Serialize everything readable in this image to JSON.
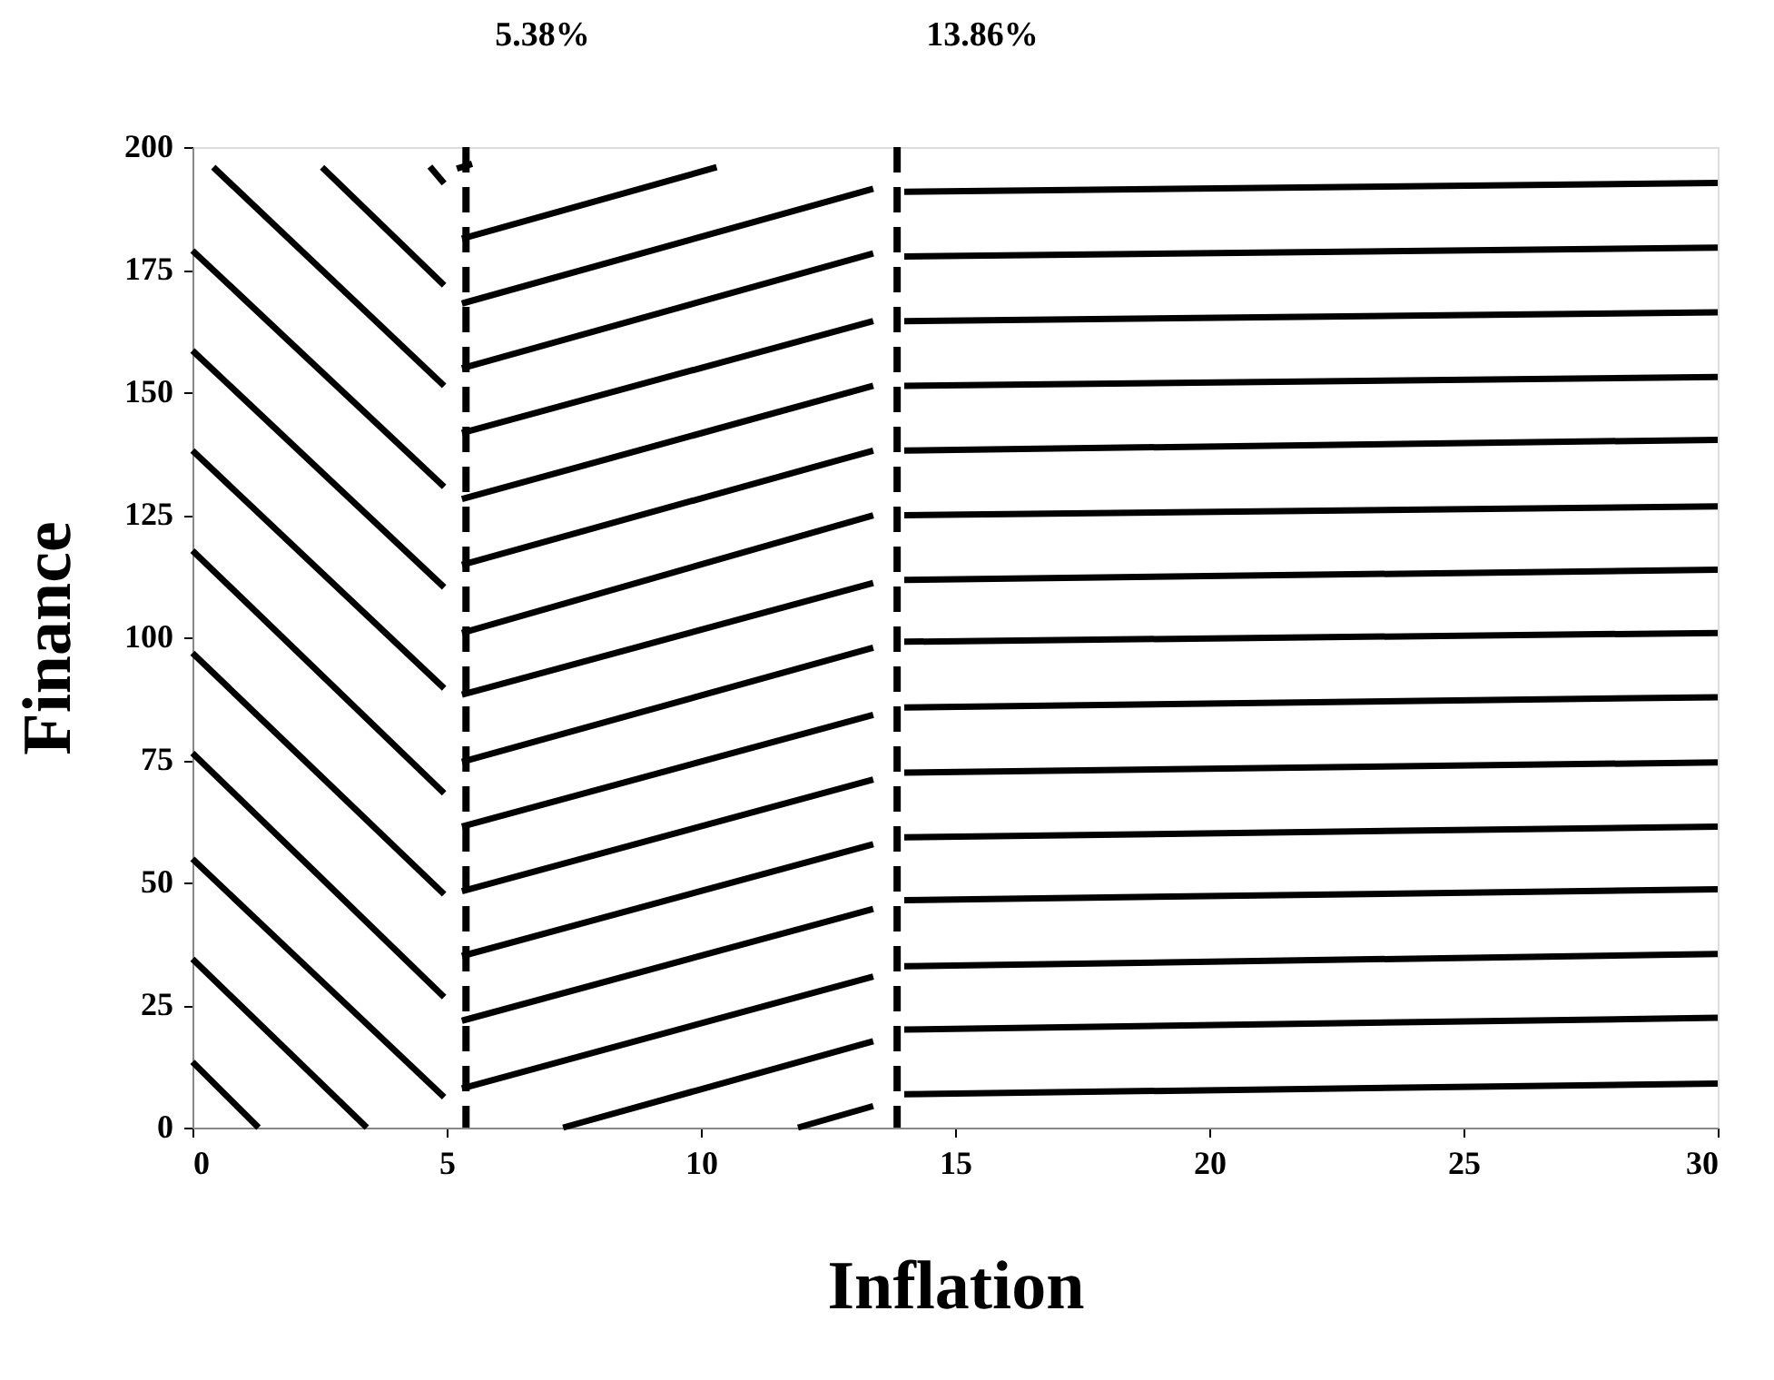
{
  "chart_data": {
    "type": "line",
    "xlabel": "Inflation",
    "ylabel": "Finance",
    "xlim": [
      0,
      30
    ],
    "ylim": [
      0,
      200
    ],
    "xticks": [
      0,
      5,
      10,
      15,
      20,
      25,
      30
    ],
    "yticks": [
      0,
      25,
      50,
      75,
      100,
      125,
      150,
      175,
      200
    ],
    "grid": false,
    "legend": false,
    "ref_lines": [
      {
        "axis": "x",
        "value": 5.38,
        "label": "5.38%",
        "line_style": "dashed",
        "color": "#000000"
      },
      {
        "axis": "x",
        "value": 13.86,
        "label": "13.86%",
        "line_style": "dashed",
        "color": "#000000"
      }
    ],
    "series": [
      {
        "color": "#000000",
        "x": [
          2.55,
          4.95
        ],
        "values": [
          195.9,
          171.8
        ]
      },
      {
        "color": "#000000",
        "x": [
          0.41,
          4.95
        ],
        "values": [
          195.9,
          151.3
        ]
      },
      {
        "color": "#000000",
        "x": [
          0,
          4.95
        ],
        "values": [
          178.9,
          130.7
        ]
      },
      {
        "color": "#000000",
        "x": [
          0,
          4.95
        ],
        "values": [
          158.5,
          110.2
        ]
      },
      {
        "color": "#000000",
        "x": [
          0,
          4.95
        ],
        "values": [
          138.1,
          89.6
        ]
      },
      {
        "color": "#000000",
        "x": [
          0,
          4.95
        ],
        "values": [
          117.7,
          68.2
        ]
      },
      {
        "color": "#000000",
        "x": [
          0,
          4.95
        ],
        "values": [
          96.8,
          47.6
        ]
      },
      {
        "color": "#000000",
        "x": [
          0,
          4.95
        ],
        "values": [
          76.4,
          26.6
        ]
      },
      {
        "color": "#000000",
        "x": [
          0,
          4.95
        ],
        "values": [
          54.8,
          6.2
        ]
      },
      {
        "color": "#000000",
        "x": [
          0,
          3.43
        ],
        "values": [
          34.4,
          0
        ]
      },
      {
        "color": "#000000",
        "x": [
          0,
          1.3
        ],
        "values": [
          13.4,
          0
        ]
      },
      {
        "color": "#000000",
        "x": [
          4.67,
          4.95
        ],
        "values": [
          196,
          192.6
        ]
      },
      {
        "color": "#000000",
        "x": [
          5.2,
          5.5
        ],
        "values": [
          195.6,
          196.6
        ]
      },
      {
        "color": "#000000",
        "x": [
          5.3,
          10.31
        ],
        "values": [
          181.3,
          195.9
        ]
      },
      {
        "color": "#000000",
        "x": [
          5.3,
          13.39
        ],
        "values": [
          168.1,
          191.5
        ]
      },
      {
        "color": "#000000",
        "x": [
          5.3,
          13.39
        ],
        "values": [
          154.9,
          178.3
        ]
      },
      {
        "color": "#000000",
        "x": [
          5.3,
          13.39
        ],
        "values": [
          141.7,
          164.5
        ]
      },
      {
        "color": "#000000",
        "x": [
          5.3,
          13.39
        ],
        "values": [
          128.2,
          151.3
        ]
      },
      {
        "color": "#000000",
        "x": [
          5.3,
          13.39
        ],
        "values": [
          114.8,
          138.1
        ]
      },
      {
        "color": "#000000",
        "x": [
          5.3,
          13.39
        ],
        "values": [
          100.9,
          124.9
        ]
      },
      {
        "color": "#000000",
        "x": [
          5.3,
          13.39
        ],
        "values": [
          88.3,
          111.1
        ]
      },
      {
        "color": "#000000",
        "x": [
          5.3,
          13.39
        ],
        "values": [
          74.6,
          97.9
        ]
      },
      {
        "color": "#000000",
        "x": [
          5.3,
          13.39
        ],
        "values": [
          61.4,
          84.2
        ]
      },
      {
        "color": "#000000",
        "x": [
          5.3,
          13.39
        ],
        "values": [
          48.2,
          71.0
        ]
      },
      {
        "color": "#000000",
        "x": [
          5.3,
          13.39
        ],
        "values": [
          35.0,
          57.8
        ]
      },
      {
        "color": "#000000",
        "x": [
          5.3,
          13.39
        ],
        "values": [
          21.8,
          44.6
        ]
      },
      {
        "color": "#000000",
        "x": [
          5.3,
          13.39
        ],
        "values": [
          8.0,
          30.8
        ]
      },
      {
        "color": "#000000",
        "x": [
          7.29,
          13.39
        ],
        "values": [
          0,
          17.6
        ]
      },
      {
        "color": "#000000",
        "x": [
          11.91,
          13.39
        ],
        "values": [
          0,
          4.4
        ]
      },
      {
        "color": "#000000",
        "x": [
          14,
          30
        ],
        "values": [
          190.9,
          192.7
        ]
      },
      {
        "color": "#000000",
        "x": [
          14,
          30
        ],
        "values": [
          177.7,
          179.5
        ]
      },
      {
        "color": "#000000",
        "x": [
          14,
          30
        ],
        "values": [
          164.5,
          166.3
        ]
      },
      {
        "color": "#000000",
        "x": [
          14,
          30
        ],
        "values": [
          151.3,
          153.1
        ]
      },
      {
        "color": "#000000",
        "x": [
          14,
          30
        ],
        "values": [
          138.1,
          140.3
        ]
      },
      {
        "color": "#000000",
        "x": [
          14,
          30
        ],
        "values": [
          124.9,
          126.7
        ]
      },
      {
        "color": "#000000",
        "x": [
          14,
          30
        ],
        "values": [
          111.7,
          113.8
        ]
      },
      {
        "color": "#000000",
        "x": [
          14,
          30
        ],
        "values": [
          99.1,
          100.9
        ]
      },
      {
        "color": "#000000",
        "x": [
          14,
          30
        ],
        "values": [
          85.7,
          87.8
        ]
      },
      {
        "color": "#000000",
        "x": [
          14,
          30
        ],
        "values": [
          72.4,
          74.5
        ]
      },
      {
        "color": "#000000",
        "x": [
          14,
          30
        ],
        "values": [
          59.2,
          61.4
        ]
      },
      {
        "color": "#000000",
        "x": [
          14,
          30
        ],
        "values": [
          46.4,
          48.6
        ]
      },
      {
        "color": "#000000",
        "x": [
          14,
          30
        ],
        "values": [
          32.9,
          35.4
        ]
      },
      {
        "color": "#000000",
        "x": [
          14,
          30
        ],
        "values": [
          20.0,
          22.4
        ]
      },
      {
        "color": "#000000",
        "x": [
          14,
          30
        ],
        "values": [
          6.8,
          9.0
        ]
      }
    ]
  }
}
